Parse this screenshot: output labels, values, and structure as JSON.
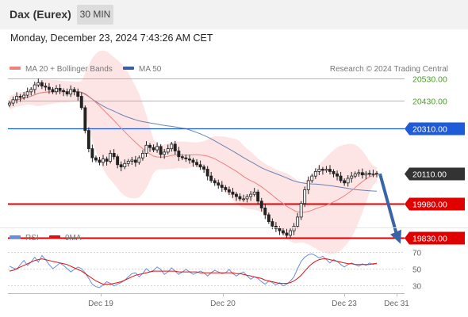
{
  "header": {
    "instrument": "Dax (Eurex)",
    "timeframe": "30 MIN"
  },
  "datetime": "Monday, December 23, 2024 7:43:26 AM CET",
  "legend": {
    "ma20_label": "MA 20 + Bollinger Bands",
    "ma50_label": "MA 50",
    "credit": "Research © 2024 Trading Central",
    "colors": {
      "ma20": "#f08080",
      "ma50": "#3a5fa0",
      "band": "#fde0e0"
    }
  },
  "indicator_legend": {
    "rsi_label": "RSI",
    "ma9_label": "9MA",
    "colors": {
      "rsi": "#6a8fd8",
      "ma9": "#e01010"
    }
  },
  "chart_data": [
    {
      "type": "candlestick",
      "title": "",
      "xlabel": "",
      "ylabel": "",
      "x_ticks": [
        "Dec 19",
        "Dec 20",
        "Dec 23",
        "Dec 31"
      ],
      "ylim": [
        19770,
        20650
      ],
      "price_levels": [
        {
          "value": 20530.0,
          "label": "20530.00",
          "kind": "resistance",
          "color": "#7cba5c"
        },
        {
          "value": 20430.0,
          "label": "20430.00",
          "kind": "resistance",
          "color": "#7cba5c"
        },
        {
          "value": 20310.0,
          "label": "20310.00",
          "kind": "pivot",
          "color": "#1e5bd8"
        },
        {
          "value": 20110.0,
          "label": "20110.00",
          "kind": "last",
          "color": "#333333"
        },
        {
          "value": 19980.0,
          "label": "19980.00",
          "kind": "support",
          "color": "#e00000"
        },
        {
          "value": 19830.0,
          "label": "19830.00",
          "kind": "support",
          "color": "#e00000"
        }
      ],
      "close_series": [
        20420,
        20435,
        20450,
        20445,
        20455,
        20470,
        20480,
        20500,
        20510,
        20495,
        20490,
        20480,
        20470,
        20485,
        20475,
        20470,
        20460,
        20480,
        20470,
        20450,
        20400,
        20300,
        20220,
        20180,
        20170,
        20160,
        20175,
        20165,
        20200,
        20185,
        20150,
        20140,
        20155,
        20165,
        20170,
        20160,
        20180,
        20200,
        20235,
        20225,
        20215,
        20230,
        20195,
        20205,
        20220,
        20240,
        20210,
        20185,
        20180,
        20175,
        20170,
        20160,
        20150,
        20140,
        20130,
        20100,
        20080,
        20070,
        20060,
        20050,
        20040,
        20030,
        20020,
        20010,
        20000,
        20000,
        20010,
        20020,
        20030,
        19990,
        19960,
        19930,
        19900,
        19880,
        19870,
        19860,
        19850,
        19840,
        19860,
        19880,
        19920,
        19980,
        20040,
        20080,
        20100,
        20120,
        20130,
        20125,
        20130,
        20120,
        20110,
        20100,
        20080,
        20070,
        20090,
        20100,
        20110,
        20115,
        20105,
        20112,
        20108,
        20110,
        20112
      ],
      "forecast": {
        "from": 20110,
        "to": 19830
      }
    },
    {
      "type": "line",
      "title": "",
      "ylim": [
        20,
        80
      ],
      "y_ticks": [
        70,
        50,
        30
      ],
      "series": [
        {
          "name": "RSI",
          "values": [
            53,
            51,
            49,
            55,
            60,
            54,
            58,
            64,
            58,
            66,
            61,
            55,
            50,
            53,
            57,
            54,
            50,
            46,
            49,
            52,
            50,
            45,
            38,
            31,
            28,
            27,
            30,
            34,
            32,
            29,
            31,
            33,
            36,
            40,
            44,
            45,
            40,
            44,
            50,
            46,
            48,
            52,
            49,
            43,
            46,
            51,
            47,
            43,
            46,
            49,
            46,
            43,
            45,
            47,
            45,
            41,
            45,
            48,
            46,
            44,
            45,
            49,
            44,
            41,
            44,
            46,
            41,
            37,
            40,
            38,
            34,
            31,
            35,
            33,
            30,
            33,
            29,
            31,
            35,
            40,
            50,
            59,
            64,
            67,
            68,
            66,
            63,
            65,
            61,
            57,
            61,
            59,
            55,
            52,
            55,
            57,
            55,
            53,
            56,
            54,
            57,
            55,
            57
          ]
        },
        {
          "name": "9MA",
          "values": [
            47,
            48,
            50,
            52,
            54,
            56,
            58,
            60,
            61,
            62,
            61,
            60,
            59,
            58,
            57,
            56,
            55,
            53,
            51,
            49,
            47,
            44,
            41,
            38,
            35,
            33,
            31,
            31,
            31,
            32,
            33,
            34,
            36,
            38,
            40,
            42,
            43,
            44,
            45,
            46,
            47,
            47,
            47,
            47,
            47,
            47,
            47,
            46,
            46,
            46,
            46,
            46,
            46,
            45,
            45,
            45,
            45,
            45,
            45,
            45,
            45,
            45,
            45,
            44,
            44,
            43,
            42,
            41,
            40,
            39,
            38,
            36,
            35,
            34,
            33,
            32,
            32,
            32,
            33,
            35,
            38,
            42,
            47,
            52,
            56,
            59,
            61,
            62,
            62,
            61,
            60,
            59,
            58,
            57,
            56,
            56,
            55,
            55,
            55,
            55,
            55,
            56,
            56
          ]
        }
      ]
    }
  ]
}
